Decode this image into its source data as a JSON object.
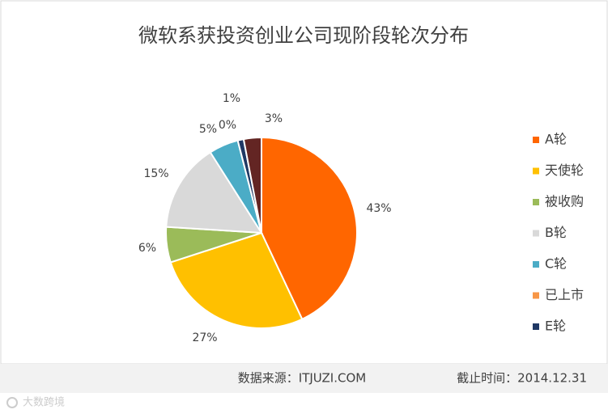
{
  "chart_data": {
    "type": "pie",
    "title": "微软系获投资创业公司现阶段轮次分布",
    "categories": [
      "A轮",
      "天使轮",
      "被收购",
      "B轮",
      "C轮",
      "已上市",
      "E轮",
      null
    ],
    "values": [
      43,
      27,
      6,
      15,
      5,
      0,
      1,
      3
    ],
    "value_labels": [
      "43%",
      "27%",
      "6%",
      "15%",
      "5%",
      "0%",
      "1%",
      "3%"
    ],
    "colors": [
      "#ff6600",
      "#ffc000",
      "#9bbb59",
      "#d9d9d9",
      "#4bacc6",
      "#f79646",
      "#1f3864",
      "#632523"
    ],
    "legend": "right"
  },
  "footer": {
    "source": "数据来源：ITJUZI.COM",
    "date": "截止时间：2014.12.31"
  },
  "watermark": "大数跨境"
}
